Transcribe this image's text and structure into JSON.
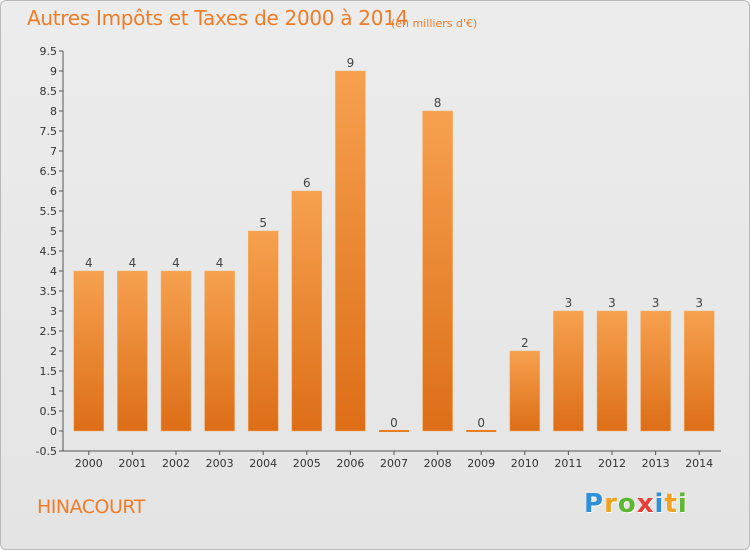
{
  "header": {
    "title": "Autres Impôts et Taxes de 2000 à 2014",
    "subtitle": "(en milliers d'€)"
  },
  "town": "HINACOURT",
  "logo": {
    "letters": [
      "P",
      "r",
      "o",
      "x",
      "i",
      "t",
      "i"
    ],
    "colors": [
      "#2f8fd8",
      "#f2a11e",
      "#5cb82e",
      "#e83f3a",
      "#2f8fd8",
      "#f2a11e",
      "#5cb82e"
    ]
  },
  "colors": {
    "accent": "#ef7c28",
    "bar_top": "#f6a14f",
    "bar_bottom": "#dd6e17",
    "zero_bar": "#e87d22"
  },
  "chart_data": {
    "type": "bar",
    "categories": [
      "2000",
      "2001",
      "2002",
      "2003",
      "2004",
      "2005",
      "2006",
      "2007",
      "2008",
      "2009",
      "2010",
      "2011",
      "2012",
      "2013",
      "2014"
    ],
    "values": [
      4,
      4,
      4,
      4,
      5,
      6,
      9,
      0,
      8,
      0,
      2,
      3,
      3,
      3,
      3
    ],
    "data_labels": [
      "4",
      "4",
      "4",
      "4",
      "5",
      "6",
      "9",
      "0",
      "8",
      "0",
      "2",
      "3",
      "3",
      "3",
      "3"
    ],
    "y_ticks": [
      "-0.5",
      "0",
      "0.5",
      "1",
      "1.5",
      "2",
      "2.5",
      "3",
      "3.5",
      "4",
      "4.5",
      "5",
      "5.5",
      "6",
      "6.5",
      "7",
      "7.5",
      "8",
      "8.5",
      "9",
      "9.5"
    ],
    "ylim": [
      -0.5,
      9.5
    ],
    "grid": false,
    "title": "Autres Impôts et Taxes de 2000 à 2014",
    "xlabel": "",
    "ylabel": ""
  }
}
